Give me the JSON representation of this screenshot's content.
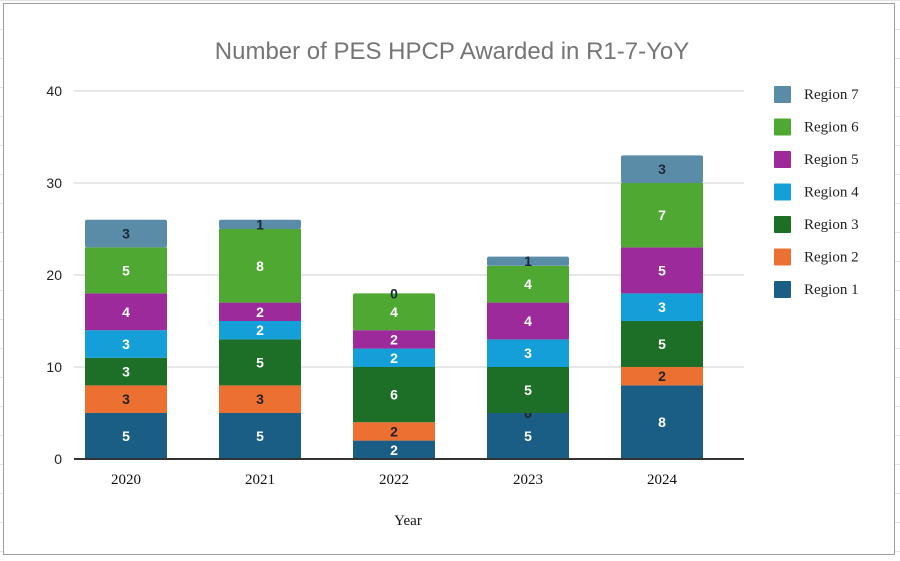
{
  "chart_data": {
    "type": "bar",
    "stacked": true,
    "title": "Number of PES HPCP Awarded in R1-7-YoY",
    "xlabel": "Year",
    "ylabel": "",
    "categories": [
      "2020",
      "2021",
      "2022",
      "2023",
      "2024"
    ],
    "ylim": [
      0,
      40
    ],
    "yticks": [
      0,
      10,
      20,
      30,
      40
    ],
    "grid": true,
    "legend_position": "right",
    "data_labels": true,
    "series": [
      {
        "name": "Region 1",
        "color": "#1a5e85",
        "label_color": "#ffffff",
        "values": [
          5,
          5,
          2,
          5,
          8
        ]
      },
      {
        "name": "Region 2",
        "color": "#ec7032",
        "label_color": "#222222",
        "values": [
          3,
          3,
          2,
          0,
          2
        ]
      },
      {
        "name": "Region 3",
        "color": "#1d6e26",
        "label_color": "#ffffff",
        "values": [
          3,
          5,
          6,
          5,
          5
        ]
      },
      {
        "name": "Region 4",
        "color": "#159fd8",
        "label_color": "#ffffff",
        "values": [
          3,
          2,
          2,
          3,
          3
        ]
      },
      {
        "name": "Region 5",
        "color": "#9c2a9b",
        "label_color": "#ffffff",
        "values": [
          4,
          2,
          2,
          4,
          5
        ]
      },
      {
        "name": "Region 6",
        "color": "#4ea832",
        "label_color": "#ffffff",
        "values": [
          5,
          8,
          4,
          4,
          7
        ]
      },
      {
        "name": "Region 7",
        "color": "#5a8ba7",
        "label_color": "#1a2a3a",
        "values": [
          3,
          1,
          0,
          1,
          3
        ]
      }
    ]
  }
}
